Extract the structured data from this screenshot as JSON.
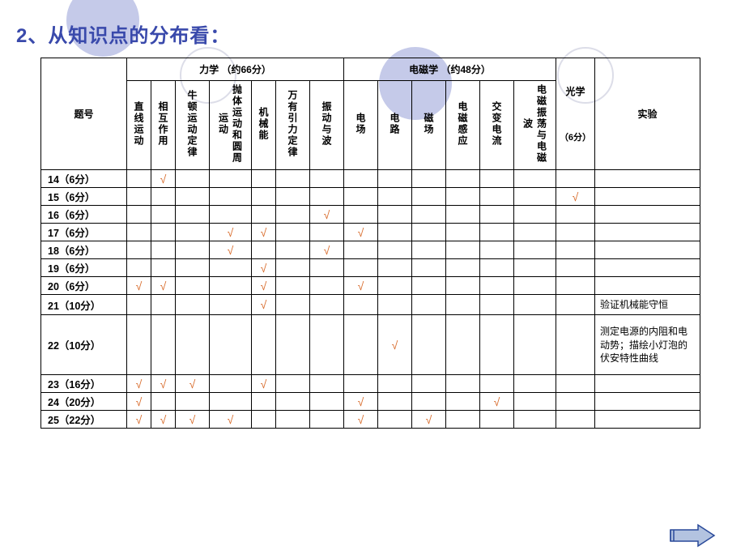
{
  "title": "2、从知识点的分布看：",
  "sections": {
    "mechanics": "力学    （约66分）",
    "em": "电磁学   （约48分）"
  },
  "headers": {
    "qnum": "题号",
    "col1": "直线运动",
    "col2": "相互作用",
    "col3": "牛顿运动定律",
    "col4": "抛体运动和圆周运动",
    "col5": "机械能",
    "col6": "万有引力定律",
    "col7": "振动与波",
    "col8": "电场",
    "col9": "电路",
    "col10": "磁场",
    "col11": "电磁感应",
    "col12": "交变电流",
    "col13": "电磁振荡与电磁波",
    "optics_l1": "光学",
    "optics_l2": "（6分）",
    "exp": "实验"
  },
  "rows": [
    {
      "q": "14（6分）",
      "c": [
        "",
        "√",
        "",
        "",
        "",
        "",
        "",
        "",
        "",
        "",
        "",
        "",
        "",
        "",
        ""
      ]
    },
    {
      "q": "15（6分）",
      "c": [
        "",
        "",
        "",
        "",
        "",
        "",
        "",
        "",
        "",
        "",
        "",
        "",
        "",
        "√",
        ""
      ]
    },
    {
      "q": "16（6分）",
      "c": [
        "",
        "",
        "",
        "",
        "",
        "",
        "√",
        "",
        "",
        "",
        "",
        "",
        "",
        "",
        ""
      ]
    },
    {
      "q": "17（6分）",
      "c": [
        "",
        "",
        "",
        "√",
        "√",
        "",
        "",
        "√",
        "",
        "",
        "",
        "",
        "",
        "",
        ""
      ]
    },
    {
      "q": "18（6分）",
      "c": [
        "",
        "",
        "",
        "√",
        "",
        "",
        "√",
        "",
        "",
        "",
        "",
        "",
        "",
        "",
        ""
      ]
    },
    {
      "q": "19（6分）",
      "c": [
        "",
        "",
        "",
        "",
        "√",
        "",
        "",
        "",
        "",
        "",
        "",
        "",
        "",
        "",
        ""
      ]
    },
    {
      "q": "20（6分）",
      "c": [
        "√",
        "√",
        "",
        "",
        "√",
        "",
        "",
        "√",
        "",
        "",
        "",
        "",
        "",
        "",
        ""
      ]
    },
    {
      "q": "21（10分）",
      "c": [
        "",
        "",
        "",
        "",
        "√",
        "",
        "",
        "",
        "",
        "",
        "",
        "",
        "",
        "",
        "验证机械能守恒"
      ]
    },
    {
      "q": "22（10分）",
      "c": [
        "",
        "",
        "",
        "",
        "",
        "",
        "",
        "",
        "√",
        "",
        "",
        "",
        "",
        "",
        "测定电源的内阻和电动势；描绘小灯泡的伏安特性曲线"
      ],
      "tall": true
    },
    {
      "q": "23（16分）",
      "c": [
        "√",
        "√",
        "√",
        "",
        "√",
        "",
        "",
        "",
        "",
        "",
        "",
        "",
        "",
        "",
        ""
      ]
    },
    {
      "q": "24（20分）",
      "c": [
        "√",
        "",
        "",
        "",
        "",
        "",
        "",
        "√",
        "",
        "",
        "",
        "√",
        "",
        "",
        ""
      ]
    },
    {
      "q": "25（22分）",
      "c": [
        "√",
        "√",
        "√",
        "√",
        "",
        "",
        "",
        "√",
        "",
        "√",
        "",
        "",
        "",
        "",
        ""
      ]
    }
  ],
  "checkmark": "√",
  "arrow": {
    "fill": "#b3c3e0",
    "stroke": "#2a4a9a"
  }
}
